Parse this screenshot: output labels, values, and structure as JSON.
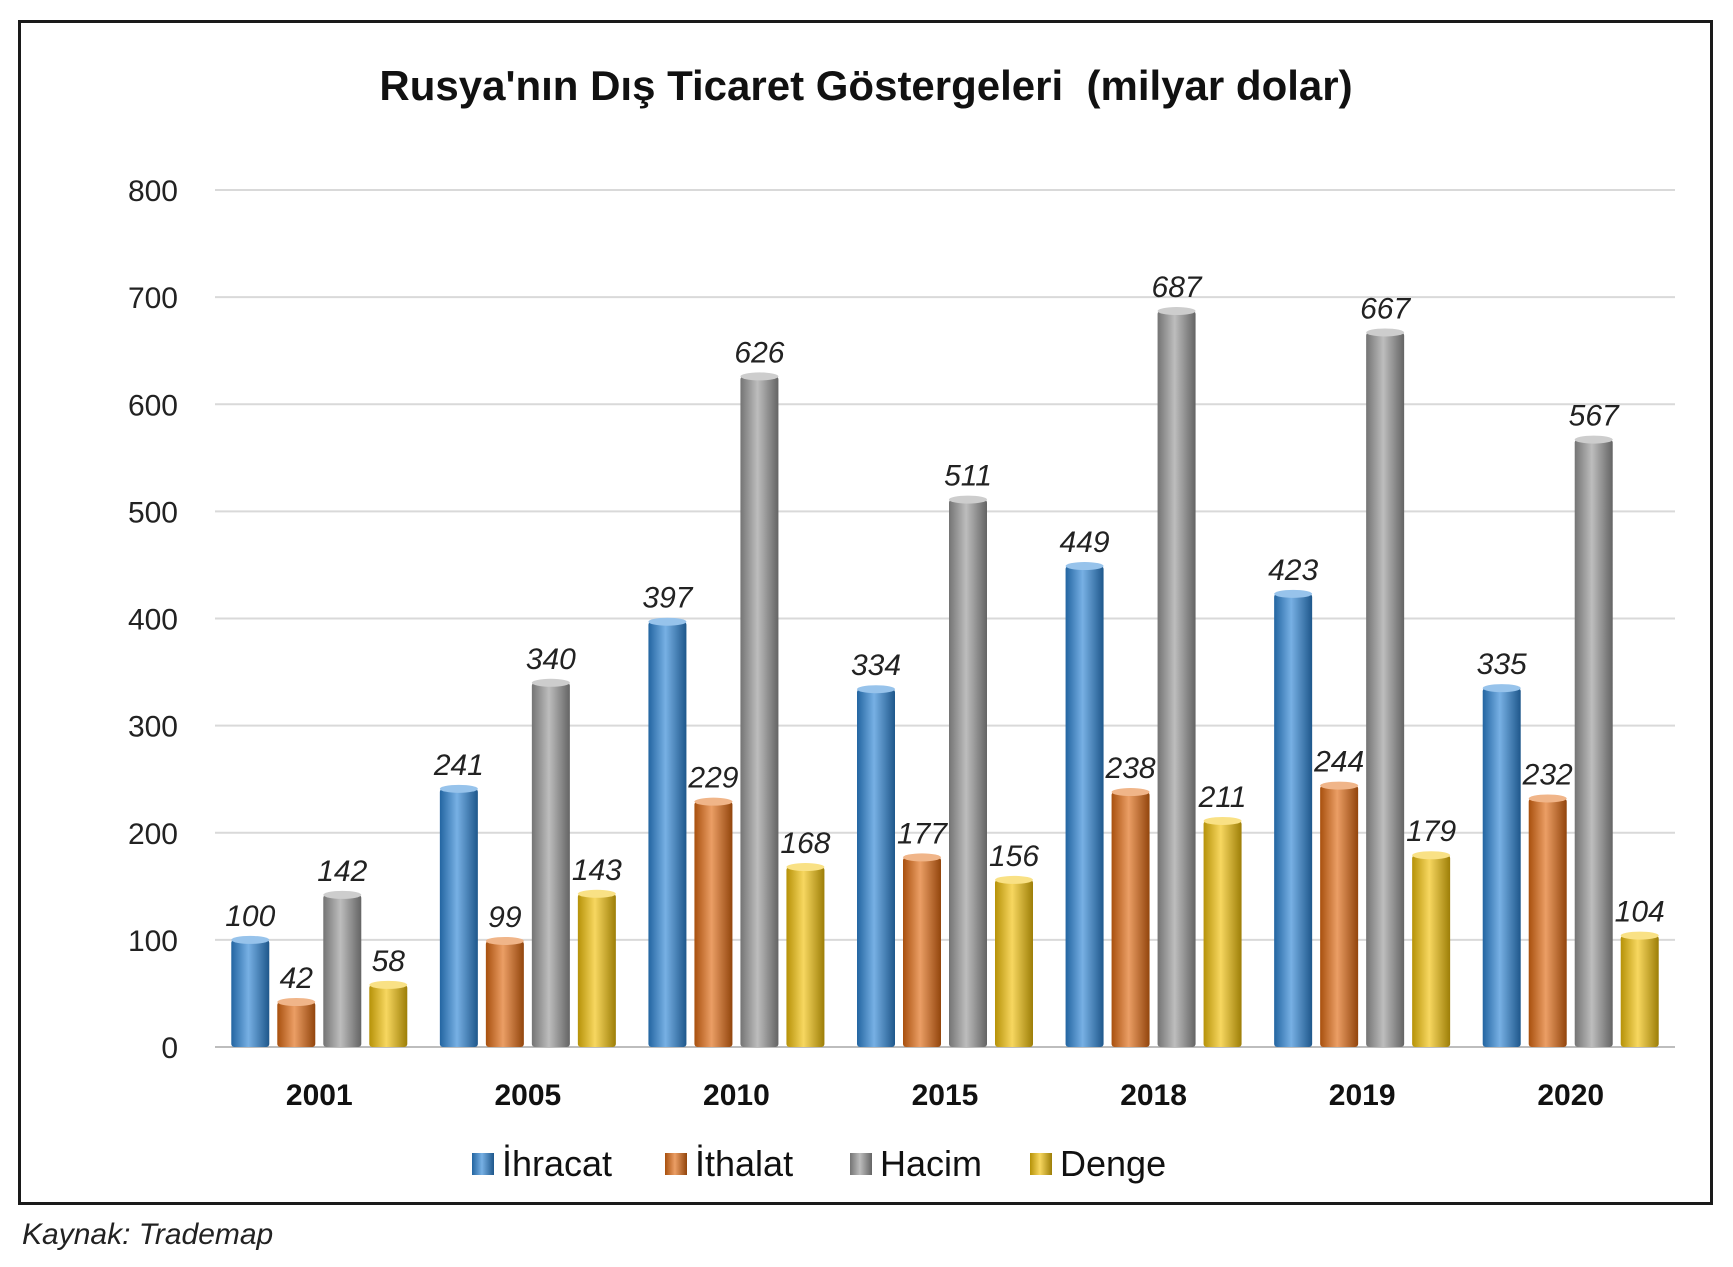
{
  "chart_data": {
    "type": "bar",
    "title": "Rusya'nın Dış Ticaret Göstergeleri  (milyar dolar)",
    "categories": [
      "2001",
      "2005",
      "2010",
      "2015",
      "2018",
      "2019",
      "2020"
    ],
    "series": [
      {
        "name": "İhracat",
        "color": "#2e86d6",
        "values": [
          100,
          241,
          397,
          334,
          449,
          423,
          335
        ]
      },
      {
        "name": "İthalat",
        "color": "#e06a12",
        "values": [
          42,
          99,
          229,
          177,
          238,
          244,
          232
        ]
      },
      {
        "name": "Hacim",
        "color": "#9a9a9a",
        "values": [
          142,
          340,
          626,
          511,
          687,
          667,
          567
        ]
      },
      {
        "name": "Denge",
        "color": "#f2c20a",
        "values": [
          58,
          143,
          168,
          156,
          211,
          179,
          104
        ]
      }
    ],
    "ylim": [
      0,
      800
    ],
    "yticks": [
      0,
      100,
      200,
      300,
      400,
      500,
      600,
      700,
      800
    ],
    "grid": true,
    "legend_position": "bottom"
  },
  "source_note": "Kaynak: Trademap"
}
